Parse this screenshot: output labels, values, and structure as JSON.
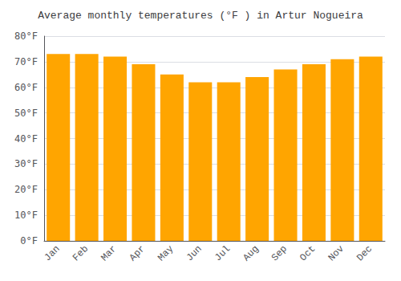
{
  "chart_data": {
    "type": "bar",
    "title": "Average monthly temperatures (°F ) in Artur Nogueira",
    "categories": [
      "Jan",
      "Feb",
      "Mar",
      "Apr",
      "May",
      "Jun",
      "Jul",
      "Aug",
      "Sep",
      "Oct",
      "Nov",
      "Dec"
    ],
    "values": [
      73,
      73,
      72,
      69,
      65,
      62,
      62,
      64,
      67,
      69,
      71,
      72
    ],
    "color": "#FFA500",
    "ylim": [
      0,
      80
    ],
    "yticks": [
      {
        "value": 0,
        "label": "0°F"
      },
      {
        "value": 10,
        "label": "10°F"
      },
      {
        "value": 20,
        "label": "20°F"
      },
      {
        "value": 30,
        "label": "30°F"
      },
      {
        "value": 40,
        "label": "40°F"
      },
      {
        "value": 50,
        "label": "50°F"
      },
      {
        "value": 60,
        "label": "60°F"
      },
      {
        "value": 70,
        "label": "70°F"
      },
      {
        "value": 80,
        "label": "80°F"
      }
    ],
    "grid": true
  }
}
